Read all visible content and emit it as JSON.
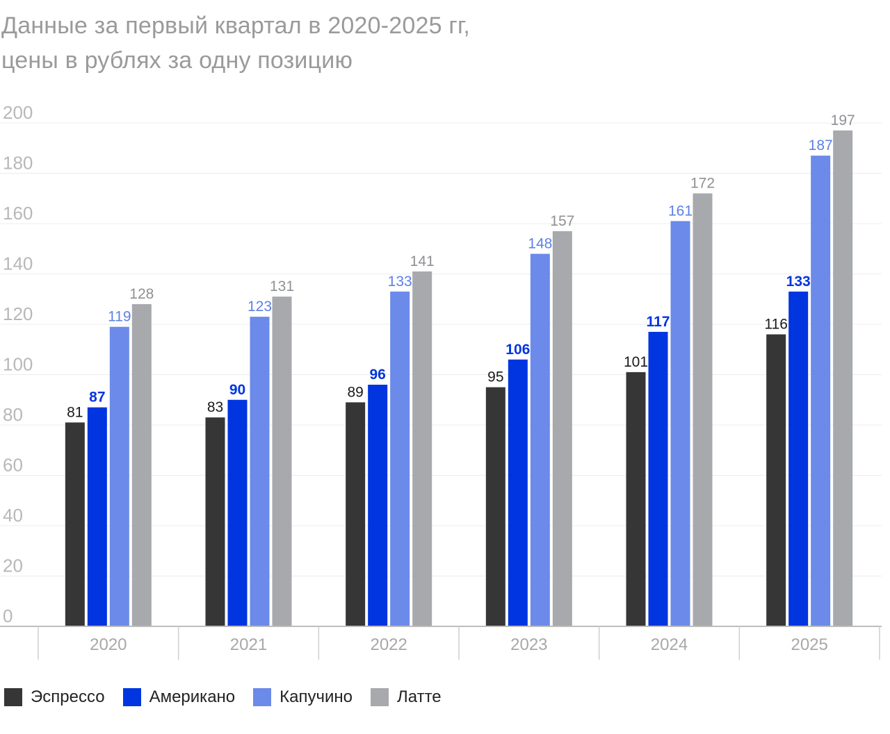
{
  "chart_data": {
    "type": "bar",
    "title": "Данные за первый квартал в 2020-2025 гг,",
    "subtitle": "цены в рублях за одну позицию",
    "categories": [
      "2020",
      "2021",
      "2022",
      "2023",
      "2024",
      "2025"
    ],
    "series": [
      {
        "name": "Эспрессо",
        "color": "#363636",
        "label_color": "#1a1a1a",
        "values": [
          81,
          83,
          89,
          95,
          101,
          116
        ]
      },
      {
        "name": "Американо",
        "color": "#0035e0",
        "label_color": "#0035e0",
        "values": [
          87,
          90,
          96,
          106,
          117,
          133
        ]
      },
      {
        "name": "Капучино",
        "color": "#6b8ae9",
        "label_color": "#5c80e6",
        "values": [
          119,
          123,
          133,
          148,
          161,
          187
        ]
      },
      {
        "name": "Латте",
        "color": "#a8a9ad",
        "label_color": "#8f9094",
        "values": [
          128,
          131,
          141,
          157,
          172,
          197
        ]
      }
    ],
    "y_ticks": [
      "0",
      "20",
      "40",
      "60",
      "80",
      "100",
      "120",
      "140",
      "160",
      "180",
      "200"
    ],
    "ylim": [
      0,
      200
    ],
    "grid": true,
    "legend_position": "bottom-left",
    "xlabel": "",
    "ylabel": ""
  }
}
